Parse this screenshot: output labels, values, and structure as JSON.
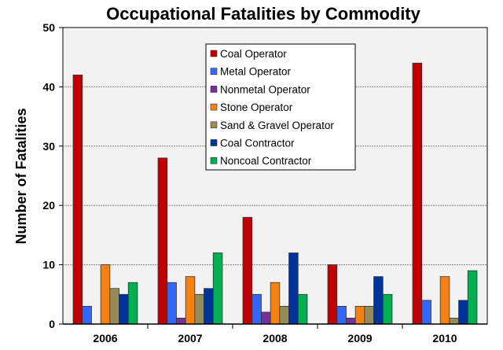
{
  "chart_data": {
    "type": "bar",
    "title": "Occupational Fatalities by Commodity",
    "xlabel": "",
    "ylabel": "Number of Fatalities",
    "ylim": [
      0,
      50
    ],
    "yticks": [
      0,
      10,
      20,
      30,
      40,
      50
    ],
    "grid": true,
    "legend_placement": "top-center",
    "categories": [
      "2006",
      "2007",
      "2008",
      "2009",
      "2010"
    ],
    "series": [
      {
        "name": "Coal Operator",
        "color": "#c00000",
        "values": [
          42,
          28,
          18,
          10,
          44
        ]
      },
      {
        "name": "Metal Operator",
        "color": "#3366ff",
        "values": [
          3,
          7,
          5,
          3,
          4
        ]
      },
      {
        "name": "Nonmetal Operator",
        "color": "#7030a0",
        "values": [
          0,
          1,
          2,
          1,
          0
        ]
      },
      {
        "name": "Stone Operator",
        "color": "#f58210",
        "values": [
          10,
          8,
          7,
          3,
          8
        ]
      },
      {
        "name": "Sand & Gravel Operator",
        "color": "#968c5a",
        "values": [
          6,
          5,
          3,
          3,
          1
        ]
      },
      {
        "name": "Coal Contractor",
        "color": "#003399",
        "values": [
          5,
          6,
          12,
          8,
          4
        ]
      },
      {
        "name": "Noncoal Contractor",
        "color": "#00b050",
        "values": [
          7,
          12,
          5,
          5,
          9
        ]
      }
    ]
  }
}
